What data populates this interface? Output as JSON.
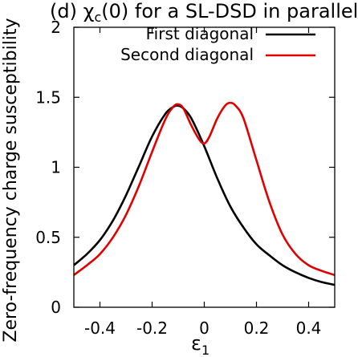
{
  "chart_data": {
    "type": "line",
    "title": "(d) χ_c(0) for a SL-DSD in parallel",
    "title_parts": {
      "prefix": "(d) ",
      "chi": "χ",
      "sub": "c",
      "suffix": "(0) for a SL-DSD in parallel"
    },
    "xlabel": "ε",
    "xlabel_sub": "1",
    "ylabel": "Zero-frequency charge susceptibility",
    "xlim": [
      -0.5,
      0.5
    ],
    "ylim": [
      0,
      2
    ],
    "xticks": [
      -0.4,
      -0.2,
      0,
      0.2,
      0.4
    ],
    "yticks": [
      0,
      0.5,
      1,
      1.5,
      2
    ],
    "xtick_labels": [
      "-0.4",
      "-0.2",
      "0",
      "0.2",
      "0.4"
    ],
    "ytick_labels": [
      "0",
      "0.5",
      "1",
      "1.5",
      "2"
    ],
    "legend_position": "top-right",
    "grid": false,
    "series": [
      {
        "name": "First diagonal",
        "color": "#000000",
        "x": [
          -0.5,
          -0.45,
          -0.4,
          -0.35,
          -0.3,
          -0.25,
          -0.2,
          -0.15,
          -0.12,
          -0.1,
          -0.08,
          -0.05,
          0,
          0.05,
          0.1,
          0.15,
          0.2,
          0.25,
          0.3,
          0.35,
          0.4,
          0.45,
          0.5
        ],
        "y": [
          0.3,
          0.38,
          0.48,
          0.62,
          0.8,
          1.01,
          1.22,
          1.38,
          1.43,
          1.44,
          1.42,
          1.35,
          1.15,
          0.92,
          0.72,
          0.57,
          0.45,
          0.37,
          0.3,
          0.25,
          0.21,
          0.18,
          0.16
        ]
      },
      {
        "name": "Second diagonal",
        "color": "#e00000",
        "x": [
          -0.5,
          -0.45,
          -0.4,
          -0.35,
          -0.3,
          -0.25,
          -0.2,
          -0.15,
          -0.12,
          -0.1,
          -0.08,
          -0.05,
          -0.02,
          0,
          0.02,
          0.05,
          0.08,
          0.1,
          0.12,
          0.15,
          0.2,
          0.25,
          0.3,
          0.35,
          0.4,
          0.45,
          0.5
        ],
        "y": [
          0.23,
          0.3,
          0.38,
          0.5,
          0.66,
          0.87,
          1.11,
          1.34,
          1.43,
          1.45,
          1.42,
          1.3,
          1.2,
          1.17,
          1.22,
          1.35,
          1.44,
          1.46,
          1.44,
          1.35,
          1.05,
          0.75,
          0.52,
          0.38,
          0.3,
          0.26,
          0.23
        ]
      }
    ]
  }
}
